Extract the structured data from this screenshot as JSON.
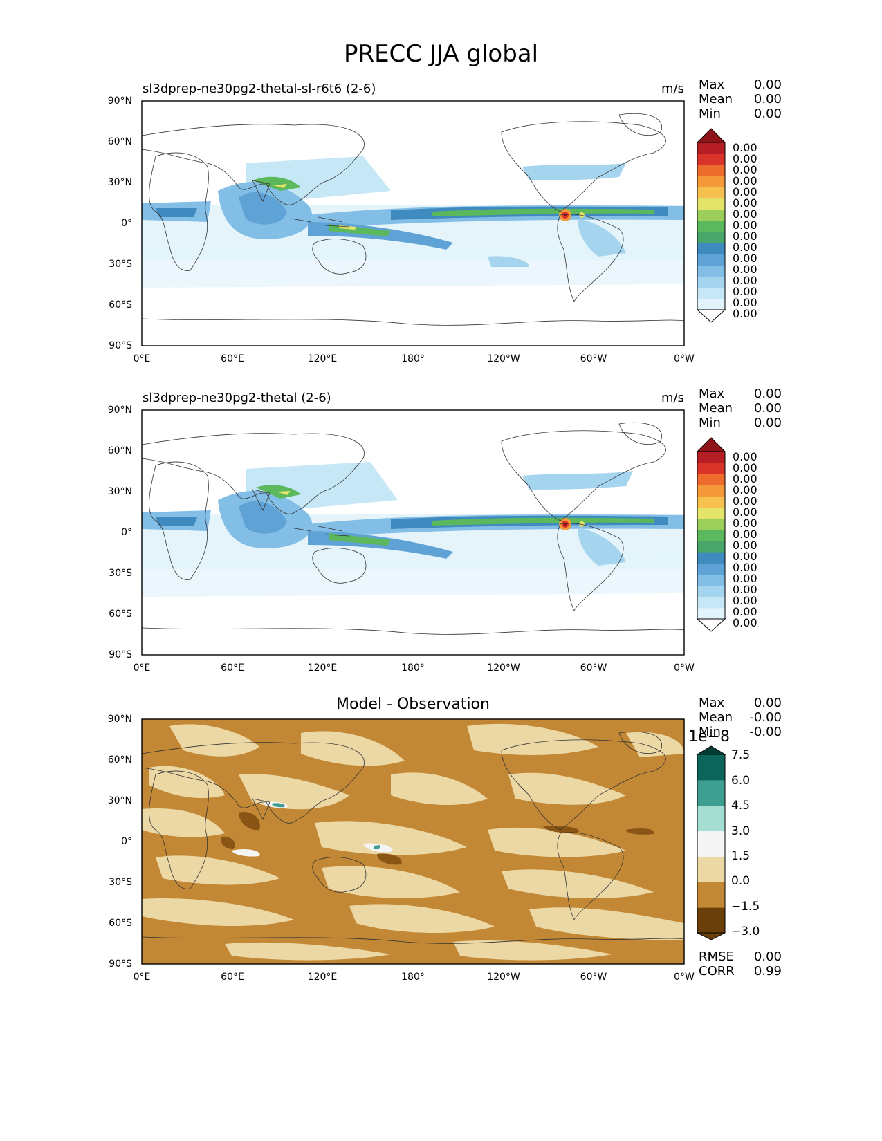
{
  "figure": {
    "title": "PRECC JJA global"
  },
  "panels": [
    {
      "title": "sl3dprep-ne30pg2-thetal-sl-r6t6 (2-6)",
      "units": "m/s",
      "stats": [
        {
          "label": "Max",
          "value": "0.00"
        },
        {
          "label": "Mean",
          "value": "0.00"
        },
        {
          "label": "Min",
          "value": "0.00"
        }
      ]
    },
    {
      "title": "sl3dprep-ne30pg2-thetal (2-6)",
      "units": "m/s",
      "stats": [
        {
          "label": "Max",
          "value": "0.00"
        },
        {
          "label": "Mean",
          "value": "0.00"
        },
        {
          "label": "Min",
          "value": "0.00"
        }
      ]
    },
    {
      "title": "Model - Observation",
      "units": "",
      "stats": [
        {
          "label": "Max",
          "value": "0.00"
        },
        {
          "label": "Mean",
          "value": "-0.00"
        },
        {
          "label": "Min",
          "value": "-0.00"
        }
      ],
      "extra_stats": [
        {
          "label": "RMSE",
          "value": "0.00"
        },
        {
          "label": "CORR",
          "value": "0.99"
        }
      ]
    }
  ],
  "axes": {
    "y_ticks": [
      "90°N",
      "60°N",
      "30°N",
      "0°",
      "30°S",
      "60°S",
      "90°S"
    ],
    "x_ticks": [
      "0°E",
      "60°E",
      "120°E",
      "180°",
      "120°W",
      "60°W",
      "0°W"
    ]
  },
  "colorbar_model": {
    "labels": [
      "0.00",
      "0.00",
      "0.00",
      "0.00",
      "0.00",
      "0.00",
      "0.00",
      "0.00",
      "0.00",
      "0.00",
      "0.00",
      "0.00",
      "0.00",
      "0.00",
      "0.00",
      "0.00"
    ],
    "colors": [
      "#ffffff",
      "#e2f3fb",
      "#c6e7f6",
      "#a5d4ef",
      "#83bee6",
      "#5fa3d6",
      "#3f8abf",
      "#4aa56a",
      "#5cb85c",
      "#9cce5c",
      "#e4e36a",
      "#f6c14e",
      "#f59a3a",
      "#ec6b2d",
      "#d9342a",
      "#b41e24",
      "#8e1318"
    ],
    "levels_visible": "0.00"
  },
  "colorbar_diff": {
    "labels": [
      "7.5",
      "6.0",
      "4.5",
      "3.0",
      "1.5",
      "0.0",
      "−1.5",
      "−3.0"
    ],
    "scale_label": "1e−8",
    "colors": [
      "#6b3f0a",
      "#8a5414",
      "#c38835",
      "#ebd8a5",
      "#f5f5f5",
      "#a6ddd3",
      "#3f9e92",
      "#0c655a",
      "#023d35"
    ]
  }
}
